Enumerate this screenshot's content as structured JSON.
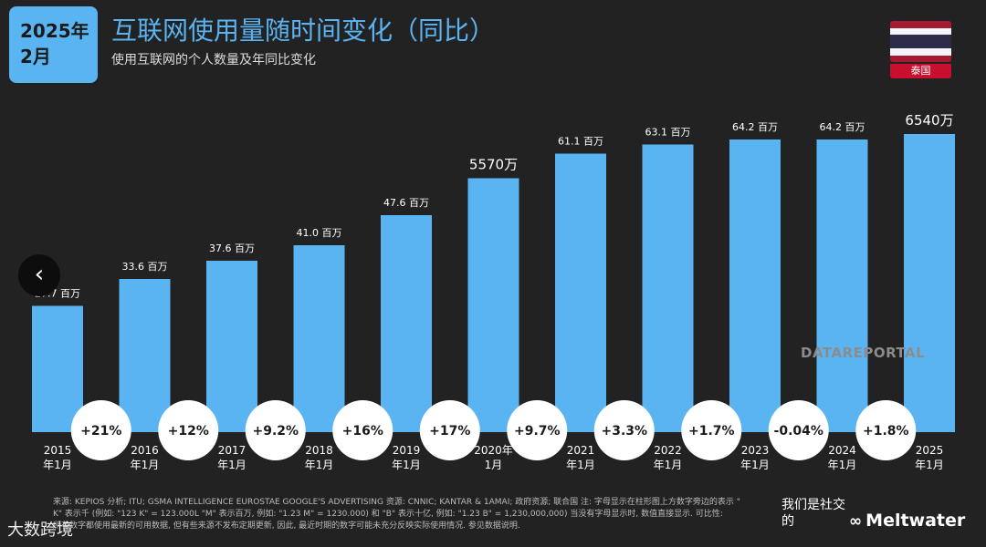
{
  "header": {
    "date_line1": "2025年",
    "date_line2": "2月",
    "title": "互联网使用量随时间变化（同比）",
    "subtitle": "使用互联网的个人数量及年同比变化",
    "country": "泰国",
    "flag_colors": [
      "#A51931",
      "#F4F5F8",
      "#2D2A4A",
      "#F4F5F8",
      "#A51931"
    ]
  },
  "colors": {
    "background": "#222222",
    "bar": "#5ab4f2",
    "circle": "#ffffff",
    "accent": "#5ab4f2"
  },
  "chart_data": {
    "type": "bar",
    "categories": [
      "2015\n年1月",
      "2016\n年1月",
      "2017\n年1月",
      "2018\n年1月",
      "2019\n年1月",
      "2020年\n1月",
      "2021\n年1月",
      "2022\n年1月",
      "2023\n年1月",
      "2024\n年1月",
      "2025\n年1月"
    ],
    "values": [
      27.7,
      33.6,
      37.6,
      41.0,
      47.6,
      55.7,
      61.1,
      63.1,
      64.2,
      64.2,
      65.4
    ],
    "data_labels": [
      "27.7 百万",
      "33.6 百万",
      "37.6 百万",
      "41.0 百万",
      "47.6 百万",
      "5570万",
      "61.1 百万",
      "63.1 百万",
      "64.2 百万",
      "64.2 百万",
      "6540万"
    ],
    "changes": [
      "+21%",
      "+12%",
      "+9.2%",
      "+16%",
      "+17%",
      "+9.7%",
      "+3.3%",
      "+1.7%",
      "-0.04%",
      "+1.8%"
    ],
    "unit": "百万"
  },
  "nav": {
    "prev_icon": "‹"
  },
  "watermark": "DATAREPORTAL",
  "footer": {
    "source_line1": "来源: KEPIOS 分析; ITU; GSMA INTELLIGENCE EUROSTAE GOOGLE'S ADVERTISING 资源: CNNIC; KANTAR & 1AMAI; 政府资源; 联合国 注: 字母显示在柱形图上方数字旁边的表示 \"",
    "source_line2": "K\" 表示千 (例如: \"123 K\" = 123.000L \"M\" 表示百万, 例如: \"1.23 M\" = 1230.000) 和 \"B\" 表示十亿, 例如: \"1.23 B\" = 1,230,000,000) 当没有字母显示时, 数值直接显示. 可比性:",
    "source_line3": "所有数字都使用最新的可用数据, 但有些来源不发布定期更新, 因此, 最近时期的数字可能未充分反映实际使用情况. 参见数据说明.",
    "social_text": "我们是社交的",
    "brand": "Meltwater",
    "brand_logo": "∞"
  },
  "overlay_text": "大数跨境"
}
